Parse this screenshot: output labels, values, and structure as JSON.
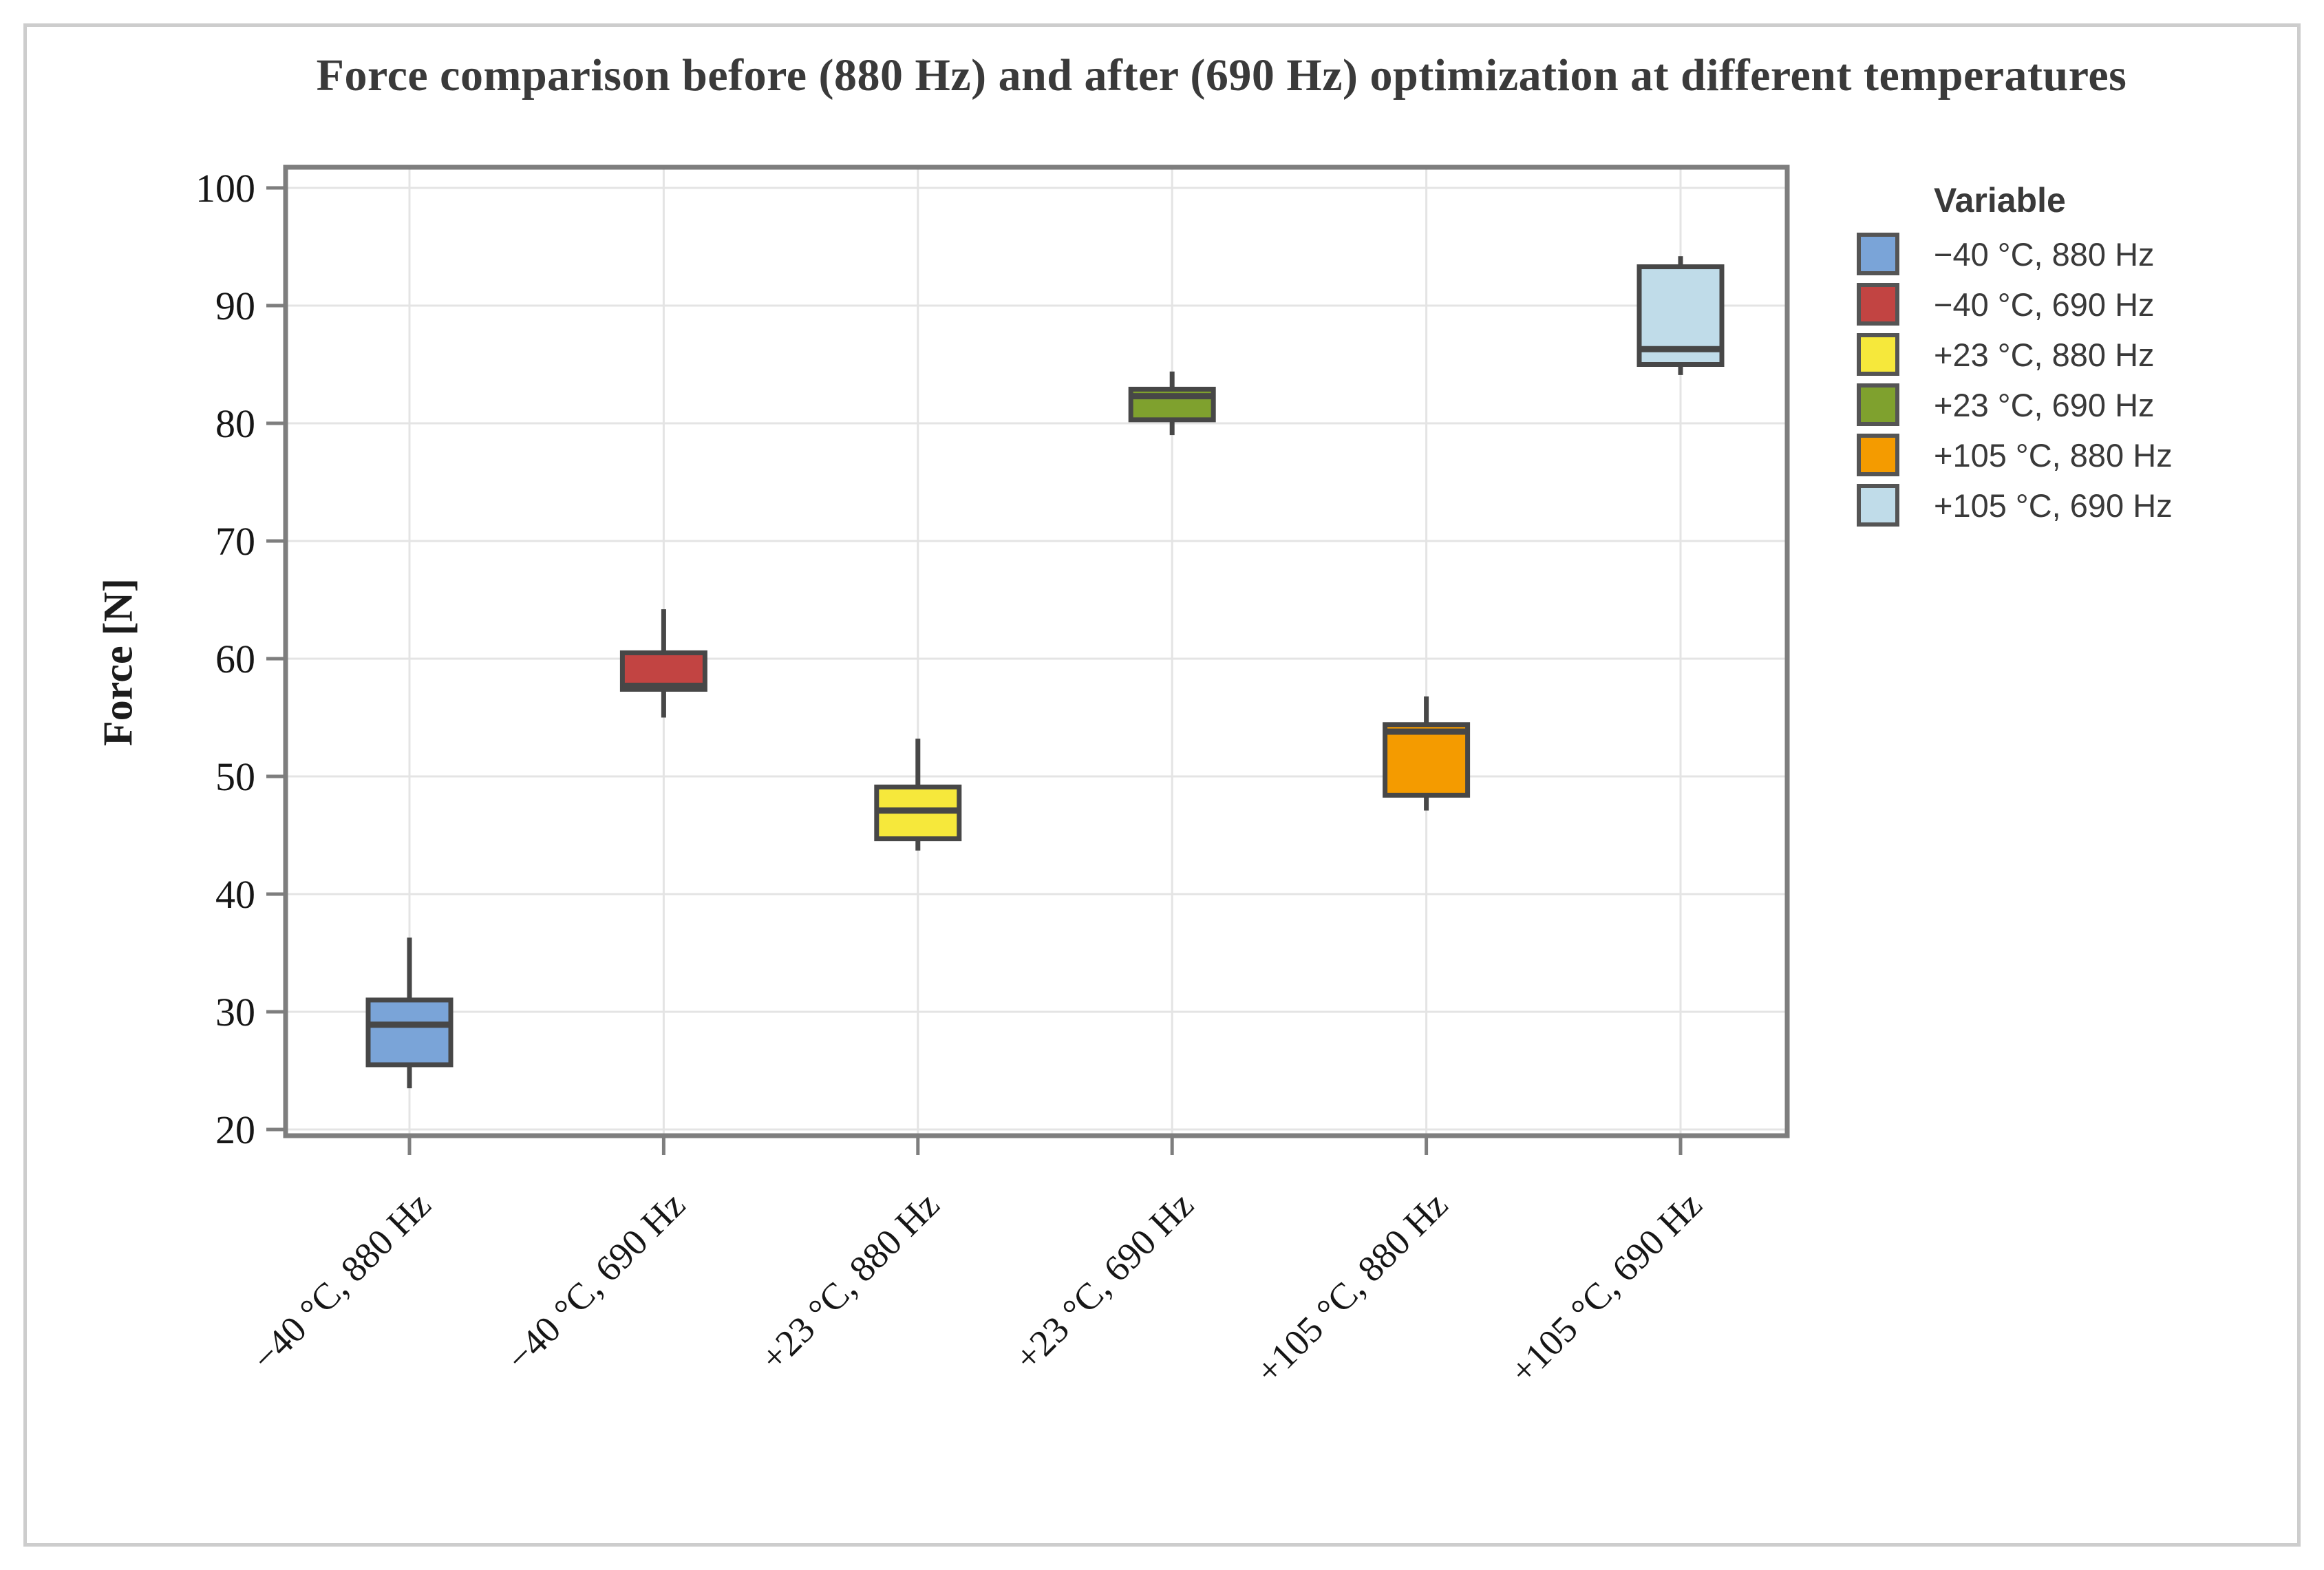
{
  "chart_data": {
    "type": "box",
    "title": "Force comparison before (880 Hz) and after (690 Hz) optimization at different temperatures",
    "ylabel": "Force [N]",
    "ylim": [
      20,
      100
    ],
    "ytick_step": 10,
    "grid": true,
    "legend_title": "Variable",
    "legend_position": "right",
    "categories": [
      "−40 °C, 880 Hz",
      "−40 °C, 690 Hz",
      "+23 °C, 880 Hz",
      "+23 °C, 690 Hz",
      "+105 °C, 880 Hz",
      "+105 °C, 690 Hz"
    ],
    "series": [
      {
        "name": "−40 °C, 880 Hz",
        "color": "#7AA4D8",
        "low": 23.5,
        "q1": 25.5,
        "median": 28.9,
        "q3": 31.0,
        "high": 36.3
      },
      {
        "name": "−40 °C, 690 Hz",
        "color": "#C24442",
        "low": 55.0,
        "q1": 57.4,
        "median": 57.7,
        "q3": 60.5,
        "high": 64.2
      },
      {
        "name": "+23 °C, 880 Hz",
        "color": "#F6E83B",
        "low": 43.7,
        "q1": 44.7,
        "median": 47.1,
        "q3": 49.1,
        "high": 53.2
      },
      {
        "name": "+23 °C, 690 Hz",
        "color": "#7FA12E",
        "low": 79.0,
        "q1": 80.3,
        "median": 82.3,
        "q3": 82.9,
        "high": 84.4
      },
      {
        "name": "+105 °C, 880 Hz",
        "color": "#F49B00",
        "low": 47.1,
        "q1": 48.4,
        "median": 53.8,
        "q3": 54.4,
        "high": 56.8
      },
      {
        "name": "+105 °C, 690 Hz",
        "color": "#C0DCE9",
        "low": 84.1,
        "q1": 85.0,
        "median": 86.3,
        "q3": 93.3,
        "high": 94.2
      }
    ],
    "style_colors": {
      "box_edge": "#474747",
      "grid_line": "#e4e4e4",
      "axis_frame": "#7e7e7e",
      "tick_text": "#161616",
      "title_text": "#3a3a3a"
    }
  }
}
